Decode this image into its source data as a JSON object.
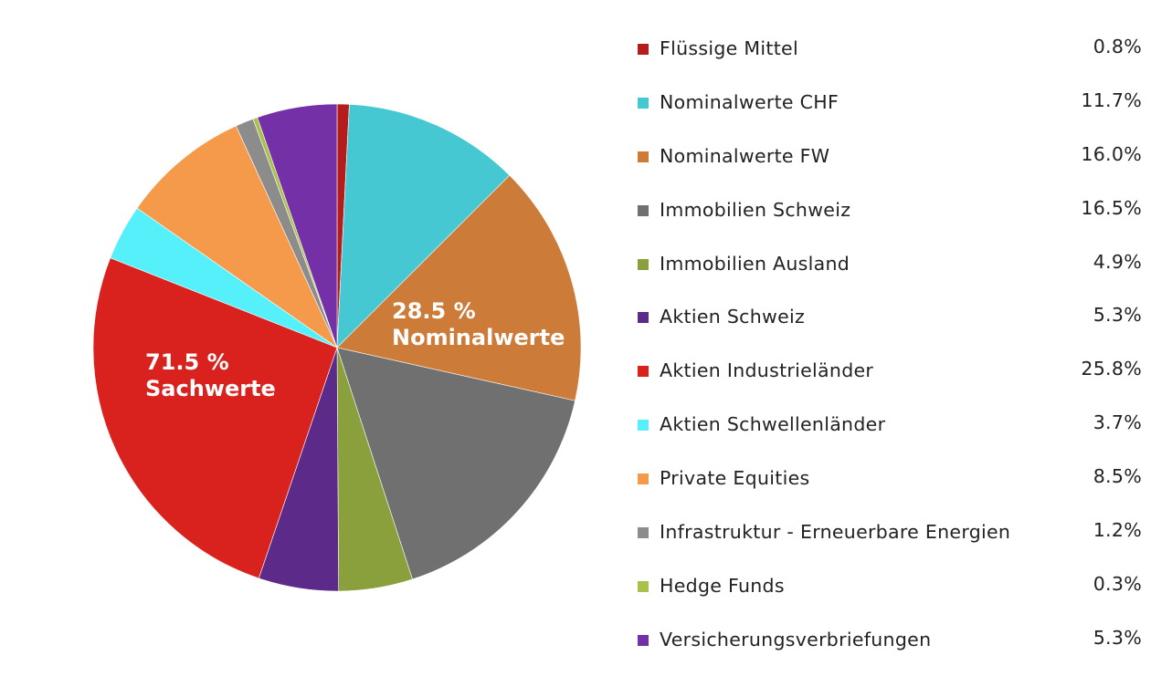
{
  "chart_data": {
    "type": "pie",
    "slices": [
      {
        "label": "Flüssige Mittel",
        "value": 0.8,
        "value_label": "0.8%",
        "color": "#b51c1c"
      },
      {
        "label": "Nominalwerte CHF",
        "value": 11.7,
        "value_label": "11.7%",
        "color": "#45c8d2"
      },
      {
        "label": "Nominalwerte FW",
        "value": 16.0,
        "value_label": "16.0%",
        "color": "#cc7b38"
      },
      {
        "label": "Immobilien Schweiz",
        "value": 16.5,
        "value_label": "16.5%",
        "color": "#707070"
      },
      {
        "label": "Immobilien Ausland",
        "value": 4.9,
        "value_label": "4.9%",
        "color": "#8aa03c"
      },
      {
        "label": "Aktien Schweiz",
        "value": 5.3,
        "value_label": "5.3%",
        "color": "#5c2a88"
      },
      {
        "label": "Aktien Industrieländer",
        "value": 25.8,
        "value_label": "25.8%",
        "color": "#d9211e"
      },
      {
        "label": "Aktien Schwellenländer",
        "value": 3.7,
        "value_label": "3.7%",
        "color": "#55f0fa"
      },
      {
        "label": "Private Equities",
        "value": 8.5,
        "value_label": "8.5%",
        "color": "#f59a4b"
      },
      {
        "label": "Infrastruktur - Erneuerbare Energien",
        "value": 1.2,
        "value_label": "1.2%",
        "color": "#8c8c8c"
      },
      {
        "label": "Hedge Funds",
        "value": 0.3,
        "value_label": "0.3%",
        "color": "#a9c14a"
      },
      {
        "label": "Versicherungsverbriefungen",
        "value": 5.3,
        "value_label": "5.3%",
        "color": "#7430a6"
      }
    ],
    "annotations": {
      "nominal": {
        "percent": "28.5 %",
        "text": "Nominalwerte"
      },
      "sach": {
        "percent": "71.5 %",
        "text": "Sachwerte"
      }
    },
    "start_angle": "12 o'clock",
    "direction": "clockwise",
    "legend_position": "right"
  }
}
